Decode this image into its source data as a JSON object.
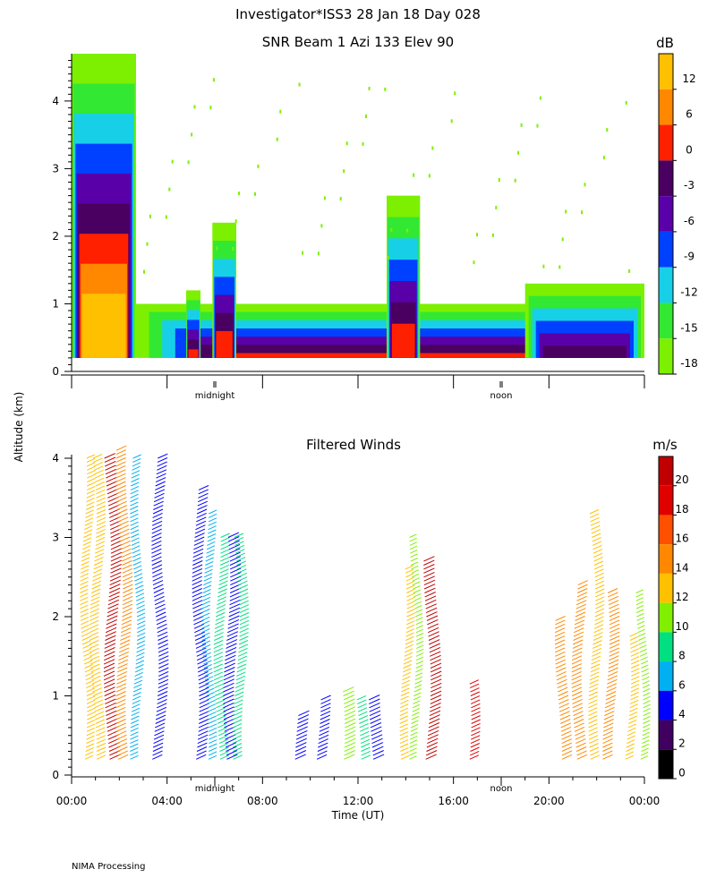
{
  "header": {
    "line1": "Investigator*ISS3  28 Jan 18 Day 028",
    "footer": "NIMA Processing"
  },
  "colors": {
    "snr_scale": [
      "#7cf000",
      "#33e833",
      "#17d0e8",
      "#0040ff",
      "#5a00a8",
      "#4a0060",
      "#ff2000",
      "#ff8800",
      "#ffc000"
    ],
    "wind_scale": [
      "#000000",
      "#400060",
      "#0000ff",
      "#00b0f0",
      "#00e080",
      "#80f000",
      "#ffc000",
      "#ff8800",
      "#ff5000",
      "#e00000",
      "#c00000"
    ]
  },
  "chart_data": [
    {
      "type": "heatmap",
      "title": "SNR Beam 1 Azi 133 Elev 90",
      "ylabel": "Altitude (km)",
      "y_ticks": [
        "0",
        "1",
        "2",
        "3",
        "4"
      ],
      "ylim": [
        0,
        4.7
      ],
      "xlim_hours": [
        0,
        24
      ],
      "day_markers": [
        {
          "label": "midnight",
          "hour": 6
        },
        {
          "label": "noon",
          "hour": 18
        }
      ],
      "colorbar": {
        "unit": "dB",
        "labels": [
          "12",
          "6",
          "0",
          "-3",
          "-6",
          "-9",
          "-12",
          "-15",
          "-18"
        ]
      },
      "features": [
        {
          "hour_start": 0.0,
          "hour_end": 2.7,
          "top_km": 4.7,
          "peak_db": 15
        },
        {
          "hour_start": 2.7,
          "hour_end": 24.0,
          "top_km": 1.0,
          "peak_db": 3
        },
        {
          "hour_start": 4.8,
          "hour_end": 5.4,
          "top_km": 1.2,
          "peak_db": 3
        },
        {
          "hour_start": 5.9,
          "hour_end": 6.9,
          "top_km": 2.2,
          "peak_db": 3
        },
        {
          "hour_start": 13.2,
          "hour_end": 14.6,
          "top_km": 2.6,
          "peak_db": 3
        },
        {
          "hour_start": 19.0,
          "hour_end": 24.0,
          "top_km": 1.3,
          "peak_db": 0
        }
      ]
    },
    {
      "type": "scatter",
      "title": "Filtered Winds",
      "xlabel": "Time (UT)",
      "ylabel": "Altitude (km)",
      "x_ticks": [
        "00:00",
        "04:00",
        "08:00",
        "12:00",
        "16:00",
        "20:00",
        "00:00"
      ],
      "y_ticks": [
        "0",
        "1",
        "2",
        "3",
        "4"
      ],
      "ylim": [
        0,
        4.1
      ],
      "xlim_hours": [
        0,
        24
      ],
      "day_markers": [
        {
          "label": "midnight",
          "hour": 6
        },
        {
          "label": "noon",
          "hour": 18
        }
      ],
      "colorbar": {
        "unit": "m/s",
        "labels": [
          "20",
          "18",
          "16",
          "14",
          "12",
          "10",
          "8",
          "6",
          "4",
          "2",
          "0"
        ]
      },
      "profiles": [
        {
          "hour": 0.5,
          "alt_top": 4.0,
          "speed": 11
        },
        {
          "hour": 0.9,
          "alt_top": 4.0,
          "speed": 12
        },
        {
          "hour": 1.5,
          "alt_top": 4.0,
          "speed": 19
        },
        {
          "hour": 2.0,
          "alt_top": 4.1,
          "speed": 13
        },
        {
          "hour": 2.6,
          "alt_top": 4.0,
          "speed": 6
        },
        {
          "hour": 3.5,
          "alt_top": 4.0,
          "speed": 3
        },
        {
          "hour": 5.2,
          "alt_top": 3.6,
          "speed": 3
        },
        {
          "hour": 5.6,
          "alt_top": 3.3,
          "speed": 6
        },
        {
          "hour": 6.1,
          "alt_top": 3.0,
          "speed": 7
        },
        {
          "hour": 6.5,
          "alt_top": 3.0,
          "speed": 4
        },
        {
          "hour": 6.9,
          "alt_top": 3.0,
          "speed": 7
        },
        {
          "hour": 9.5,
          "alt_top": 0.8,
          "speed": 4
        },
        {
          "hour": 10.3,
          "alt_top": 1.0,
          "speed": 3
        },
        {
          "hour": 11.3,
          "alt_top": 1.1,
          "speed": 9
        },
        {
          "hour": 12.0,
          "alt_top": 1.0,
          "speed": 7
        },
        {
          "hour": 12.6,
          "alt_top": 1.0,
          "speed": 4
        },
        {
          "hour": 13.9,
          "alt_top": 2.6,
          "speed": 11
        },
        {
          "hour": 14.3,
          "alt_top": 3.0,
          "speed": 10
        },
        {
          "hour": 14.9,
          "alt_top": 2.7,
          "speed": 19
        },
        {
          "hour": 16.6,
          "alt_top": 1.2,
          "speed": 17
        },
        {
          "hour": 20.4,
          "alt_top": 2.0,
          "speed": 13
        },
        {
          "hour": 21.1,
          "alt_top": 2.4,
          "speed": 13
        },
        {
          "hour": 21.8,
          "alt_top": 3.3,
          "speed": 12
        },
        {
          "hour": 22.4,
          "alt_top": 2.3,
          "speed": 13
        },
        {
          "hour": 23.3,
          "alt_top": 1.8,
          "speed": 11
        },
        {
          "hour": 23.8,
          "alt_top": 2.3,
          "speed": 10
        }
      ]
    }
  ]
}
